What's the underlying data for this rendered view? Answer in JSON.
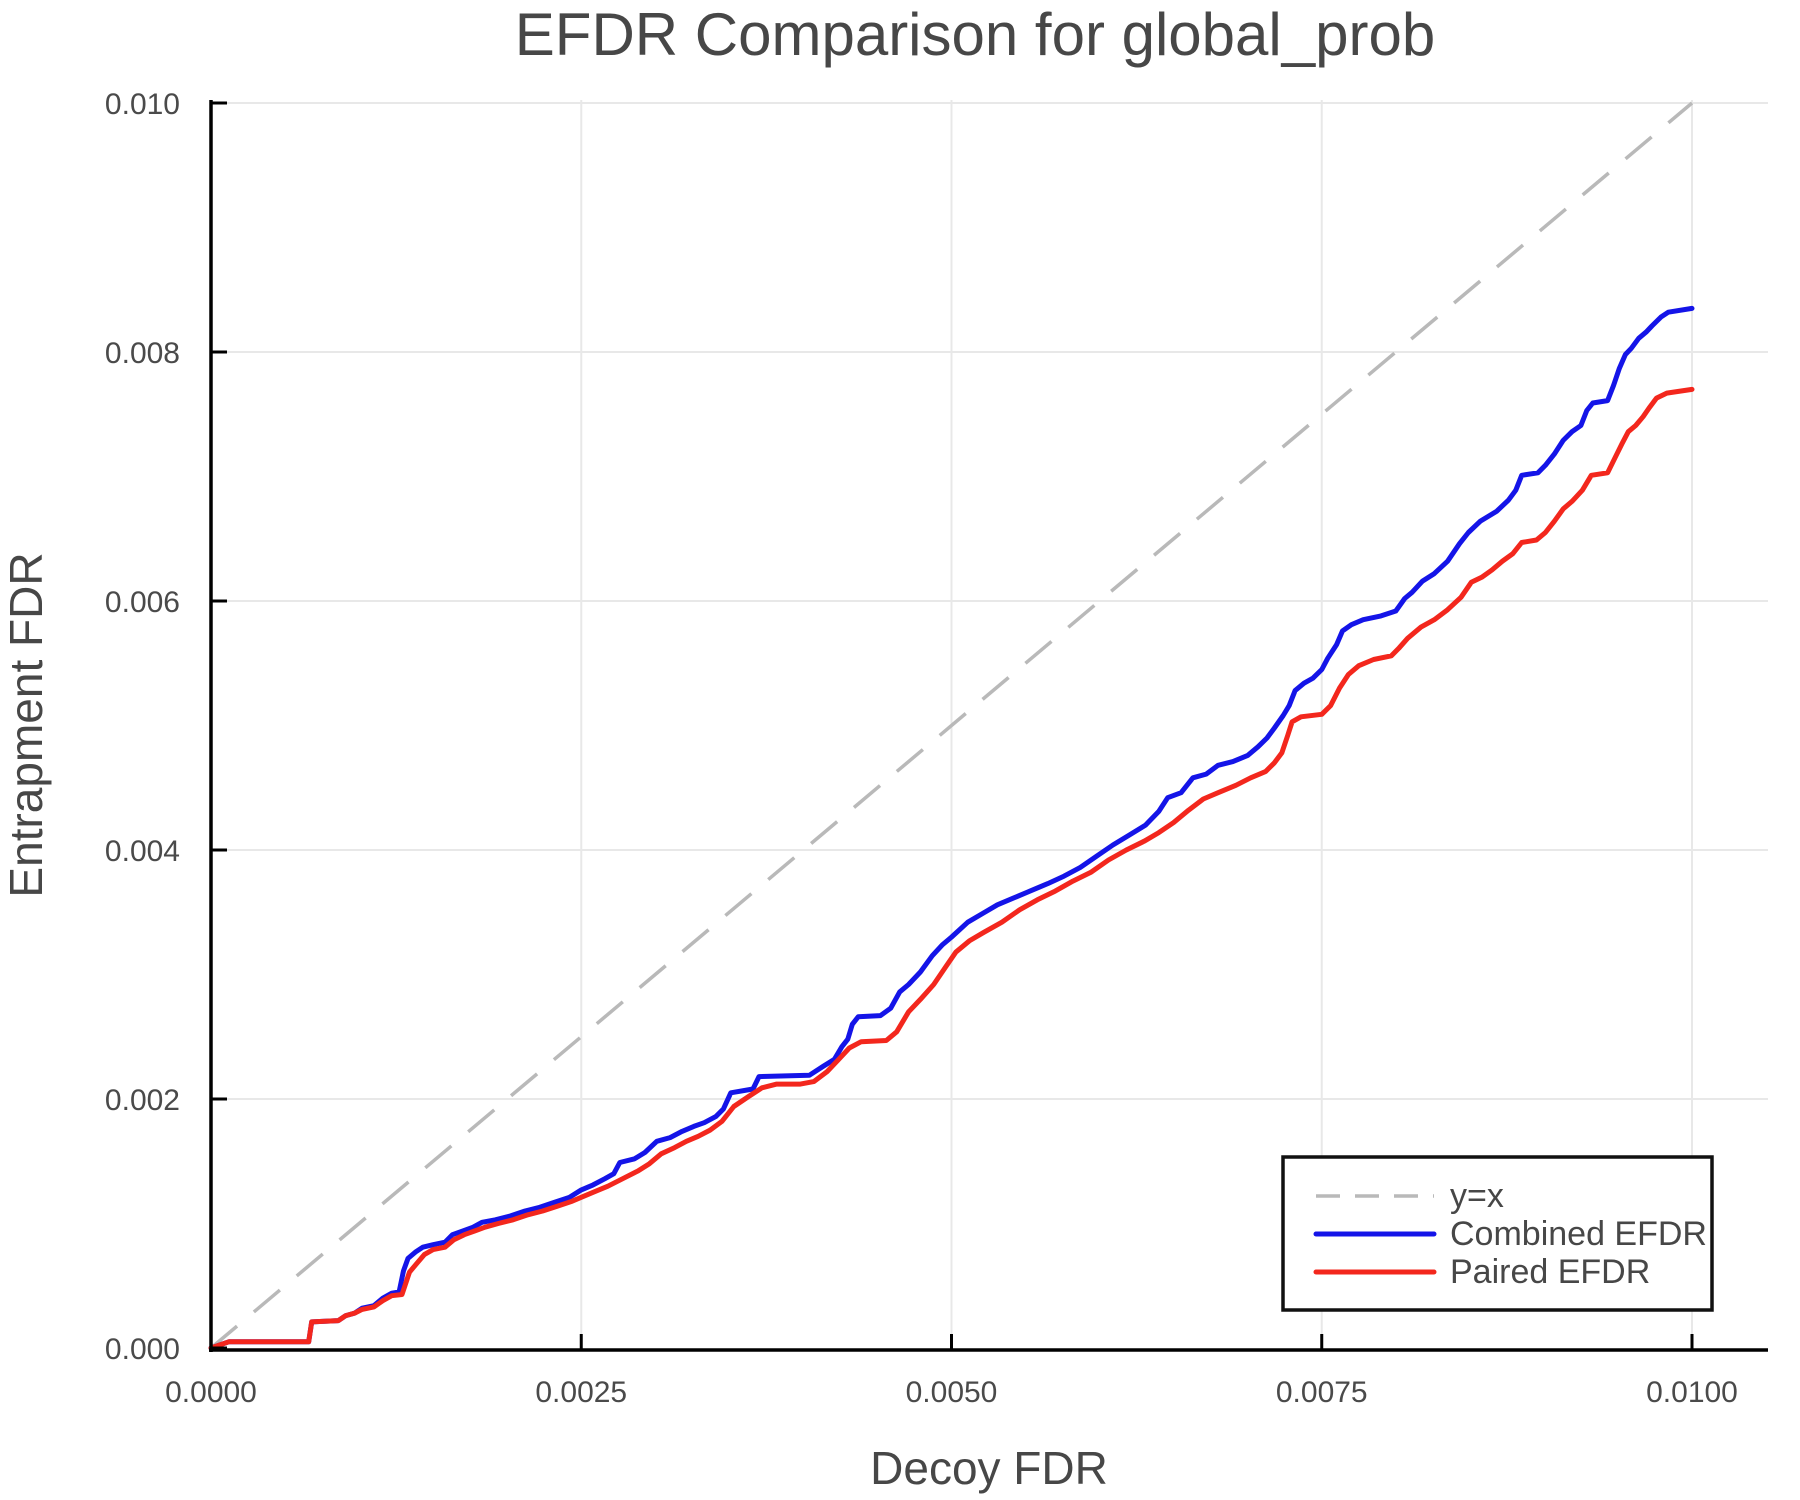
{
  "chart": {
    "title": "EFDR Comparison for global_prob",
    "xlabel": "Decoy FDR",
    "ylabel": "Entrapment FDR"
  },
  "colors": {
    "background": "#ffffff",
    "gridline": "#e8e8e8",
    "axis_spine": "#000000",
    "text": "#474747",
    "diagonal": "#b9b9b9",
    "combined_blue": "#1414e8",
    "paired_red": "#f3271d",
    "legend_border": "#111111"
  },
  "legend": {
    "items": [
      {
        "label": "y=x",
        "color": "#b9b9b9",
        "style": "dashed"
      },
      {
        "label": "Combined EFDR",
        "color": "#1414e8",
        "style": "solid"
      },
      {
        "label": "Paired EFDR",
        "color": "#f3271d",
        "style": "solid"
      }
    ]
  },
  "chart_data": {
    "type": "line",
    "title": "EFDR Comparison for global_prob",
    "xlabel": "Decoy FDR",
    "ylabel": "Entrapment FDR",
    "xlim": [
      0,
      0.0105
    ],
    "ylim": [
      0,
      0.01005
    ],
    "grid": true,
    "legend_position": "bottom-right",
    "x_ticks": [
      {
        "value": 0.0,
        "label": "0.0000"
      },
      {
        "value": 0.0025,
        "label": "0.0025"
      },
      {
        "value": 0.005,
        "label": "0.0050"
      },
      {
        "value": 0.0075,
        "label": "0.0075"
      },
      {
        "value": 0.01,
        "label": "0.0100"
      }
    ],
    "y_ticks": [
      {
        "value": 0.0,
        "label": "0.000"
      },
      {
        "value": 0.002,
        "label": "0.002"
      },
      {
        "value": 0.004,
        "label": "0.004"
      },
      {
        "value": 0.006,
        "label": "0.006"
      },
      {
        "value": 0.008,
        "label": "0.008"
      },
      {
        "value": 0.01,
        "label": "0.010"
      }
    ],
    "reference_line": {
      "name": "y=x",
      "from": [
        0,
        0
      ],
      "to": [
        0.01,
        0.01
      ],
      "color": "#b9b9b9",
      "dashed": true
    },
    "series": [
      {
        "name": "Combined EFDR",
        "color": "#1414e8",
        "points": [
          [
            0.0,
            0.0
          ],
          [
            0.00012,
            5e-05
          ],
          [
            0.00066,
            5e-05
          ],
          [
            0.00068,
            0.00021
          ],
          [
            0.00086,
            0.00022
          ],
          [
            0.00091,
            0.00026
          ],
          [
            0.00097,
            0.00028
          ],
          [
            0.00102,
            0.00032
          ],
          [
            0.0011,
            0.00034
          ],
          [
            0.00116,
            0.0004
          ],
          [
            0.00122,
            0.00044
          ],
          [
            0.00127,
            0.00045
          ],
          [
            0.0013,
            0.00062
          ],
          [
            0.00133,
            0.00072
          ],
          [
            0.00138,
            0.00077
          ],
          [
            0.00143,
            0.00081
          ],
          [
            0.0015,
            0.00083
          ],
          [
            0.00158,
            0.00085
          ],
          [
            0.00163,
            0.00091
          ],
          [
            0.0017,
            0.00094
          ],
          [
            0.00177,
            0.00097
          ],
          [
            0.00183,
            0.00101
          ],
          [
            0.00192,
            0.00103
          ],
          [
            0.00202,
            0.00106
          ],
          [
            0.00212,
            0.0011
          ],
          [
            0.00222,
            0.00113
          ],
          [
            0.00232,
            0.00117
          ],
          [
            0.00242,
            0.00121
          ],
          [
            0.0025,
            0.00127
          ],
          [
            0.00258,
            0.00131
          ],
          [
            0.00266,
            0.00136
          ],
          [
            0.00272,
            0.0014
          ],
          [
            0.00276,
            0.00149
          ],
          [
            0.00286,
            0.00152
          ],
          [
            0.00293,
            0.00157
          ],
          [
            0.00301,
            0.00166
          ],
          [
            0.0031,
            0.00169
          ],
          [
            0.00318,
            0.00174
          ],
          [
            0.00326,
            0.00178
          ],
          [
            0.00333,
            0.00181
          ],
          [
            0.00341,
            0.00186
          ],
          [
            0.00346,
            0.00192
          ],
          [
            0.00351,
            0.00205
          ],
          [
            0.00366,
            0.00208
          ],
          [
            0.0037,
            0.00218
          ],
          [
            0.00404,
            0.00219
          ],
          [
            0.00413,
            0.00226
          ],
          [
            0.00421,
            0.00232
          ],
          [
            0.00426,
            0.00242
          ],
          [
            0.0043,
            0.00248
          ],
          [
            0.00433,
            0.0026
          ],
          [
            0.00437,
            0.00266
          ],
          [
            0.00452,
            0.00267
          ],
          [
            0.00459,
            0.00273
          ],
          [
            0.00465,
            0.00286
          ],
          [
            0.00471,
            0.00292
          ],
          [
            0.00479,
            0.00302
          ],
          [
            0.00487,
            0.00315
          ],
          [
            0.00494,
            0.00324
          ],
          [
            0.005,
            0.0033
          ],
          [
            0.00511,
            0.00342
          ],
          [
            0.00521,
            0.00349
          ],
          [
            0.00531,
            0.00356
          ],
          [
            0.00541,
            0.00361
          ],
          [
            0.00553,
            0.00367
          ],
          [
            0.00565,
            0.00373
          ],
          [
            0.00576,
            0.00379
          ],
          [
            0.00587,
            0.00386
          ],
          [
            0.00598,
            0.00395
          ],
          [
            0.00609,
            0.00404
          ],
          [
            0.0062,
            0.00412
          ],
          [
            0.00631,
            0.0042
          ],
          [
            0.0064,
            0.00431
          ],
          [
            0.00646,
            0.00442
          ],
          [
            0.00655,
            0.00446
          ],
          [
            0.00663,
            0.00458
          ],
          [
            0.00672,
            0.00461
          ],
          [
            0.0068,
            0.00468
          ],
          [
            0.0069,
            0.00471
          ],
          [
            0.007,
            0.00476
          ],
          [
            0.00707,
            0.00483
          ],
          [
            0.00713,
            0.0049
          ],
          [
            0.00718,
            0.00498
          ],
          [
            0.00724,
            0.00508
          ],
          [
            0.00728,
            0.00516
          ],
          [
            0.00732,
            0.00528
          ],
          [
            0.00738,
            0.00534
          ],
          [
            0.00744,
            0.00538
          ],
          [
            0.0075,
            0.00545
          ],
          [
            0.00754,
            0.00554
          ],
          [
            0.0076,
            0.00565
          ],
          [
            0.00764,
            0.00576
          ],
          [
            0.0077,
            0.00581
          ],
          [
            0.00778,
            0.00585
          ],
          [
            0.0079,
            0.00588
          ],
          [
            0.008,
            0.00592
          ],
          [
            0.00806,
            0.00602
          ],
          [
            0.00811,
            0.00607
          ],
          [
            0.00818,
            0.00616
          ],
          [
            0.00826,
            0.00622
          ],
          [
            0.00835,
            0.00632
          ],
          [
            0.00843,
            0.00646
          ],
          [
            0.00849,
            0.00655
          ],
          [
            0.00857,
            0.00664
          ],
          [
            0.00868,
            0.00672
          ],
          [
            0.00876,
            0.00681
          ],
          [
            0.00881,
            0.00689
          ],
          [
            0.00885,
            0.00701
          ],
          [
            0.00896,
            0.00703
          ],
          [
            0.00901,
            0.00709
          ],
          [
            0.00907,
            0.00718
          ],
          [
            0.00913,
            0.00729
          ],
          [
            0.00919,
            0.00736
          ],
          [
            0.00925,
            0.00741
          ],
          [
            0.00929,
            0.00753
          ],
          [
            0.00933,
            0.00759
          ],
          [
            0.00943,
            0.00761
          ],
          [
            0.00947,
            0.00773
          ],
          [
            0.00951,
            0.00787
          ],
          [
            0.00955,
            0.00798
          ],
          [
            0.00959,
            0.00803
          ],
          [
            0.00964,
            0.00811
          ],
          [
            0.00969,
            0.00816
          ],
          [
            0.00973,
            0.00821
          ],
          [
            0.00979,
            0.00828
          ],
          [
            0.00984,
            0.00832
          ],
          [
            0.01,
            0.00835
          ]
        ]
      },
      {
        "name": "Paired EFDR",
        "color": "#f3271d",
        "points": [
          [
            0.0,
            0.0
          ],
          [
            0.00012,
            5e-05
          ],
          [
            0.00066,
            5e-05
          ],
          [
            0.00068,
            0.00021
          ],
          [
            0.00086,
            0.00022
          ],
          [
            0.00091,
            0.00026
          ],
          [
            0.00097,
            0.00028
          ],
          [
            0.00102,
            0.00031
          ],
          [
            0.0011,
            0.00033
          ],
          [
            0.00116,
            0.00038
          ],
          [
            0.00122,
            0.00042
          ],
          [
            0.00129,
            0.00043
          ],
          [
            0.00134,
            0.00061
          ],
          [
            0.00139,
            0.00068
          ],
          [
            0.00144,
            0.00075
          ],
          [
            0.0015,
            0.00079
          ],
          [
            0.00158,
            0.00081
          ],
          [
            0.00164,
            0.00087
          ],
          [
            0.00171,
            0.00091
          ],
          [
            0.00178,
            0.00094
          ],
          [
            0.00185,
            0.00097
          ],
          [
            0.00194,
            0.001
          ],
          [
            0.00204,
            0.00103
          ],
          [
            0.00214,
            0.00107
          ],
          [
            0.00224,
            0.0011
          ],
          [
            0.00234,
            0.00114
          ],
          [
            0.00244,
            0.00118
          ],
          [
            0.00252,
            0.00122
          ],
          [
            0.0026,
            0.00126
          ],
          [
            0.00268,
            0.0013
          ],
          [
            0.00278,
            0.00136
          ],
          [
            0.00288,
            0.00142
          ],
          [
            0.00296,
            0.00148
          ],
          [
            0.00304,
            0.00156
          ],
          [
            0.00313,
            0.00161
          ],
          [
            0.00321,
            0.00166
          ],
          [
            0.00329,
            0.0017
          ],
          [
            0.00337,
            0.00175
          ],
          [
            0.00345,
            0.00182
          ],
          [
            0.00353,
            0.00194
          ],
          [
            0.00363,
            0.00202
          ],
          [
            0.00372,
            0.00209
          ],
          [
            0.00382,
            0.00212
          ],
          [
            0.00398,
            0.00212
          ],
          [
            0.00407,
            0.00214
          ],
          [
            0.00416,
            0.00222
          ],
          [
            0.00424,
            0.00232
          ],
          [
            0.00431,
            0.00241
          ],
          [
            0.00439,
            0.00246
          ],
          [
            0.00456,
            0.00247
          ],
          [
            0.00463,
            0.00254
          ],
          [
            0.00471,
            0.0027
          ],
          [
            0.00479,
            0.0028
          ],
          [
            0.00488,
            0.00292
          ],
          [
            0.00496,
            0.00306
          ],
          [
            0.00503,
            0.00318
          ],
          [
            0.00512,
            0.00327
          ],
          [
            0.00522,
            0.00334
          ],
          [
            0.00534,
            0.00342
          ],
          [
            0.00546,
            0.00352
          ],
          [
            0.00558,
            0.0036
          ],
          [
            0.0057,
            0.00367
          ],
          [
            0.00582,
            0.00375
          ],
          [
            0.00594,
            0.00382
          ],
          [
            0.00606,
            0.00392
          ],
          [
            0.00618,
            0.004
          ],
          [
            0.0063,
            0.00407
          ],
          [
            0.0064,
            0.00414
          ],
          [
            0.0065,
            0.00422
          ],
          [
            0.0066,
            0.00432
          ],
          [
            0.0067,
            0.00441
          ],
          [
            0.0068,
            0.00446
          ],
          [
            0.00692,
            0.00452
          ],
          [
            0.00702,
            0.00458
          ],
          [
            0.00712,
            0.00463
          ],
          [
            0.00718,
            0.0047
          ],
          [
            0.00723,
            0.00478
          ],
          [
            0.00727,
            0.00492
          ],
          [
            0.0073,
            0.00503
          ],
          [
            0.00736,
            0.00507
          ],
          [
            0.0075,
            0.00509
          ],
          [
            0.00756,
            0.00516
          ],
          [
            0.00762,
            0.0053
          ],
          [
            0.00768,
            0.00541
          ],
          [
            0.00775,
            0.00548
          ],
          [
            0.00785,
            0.00553
          ],
          [
            0.00797,
            0.00556
          ],
          [
            0.00802,
            0.00562
          ],
          [
            0.00808,
            0.0057
          ],
          [
            0.00817,
            0.00579
          ],
          [
            0.00826,
            0.00585
          ],
          [
            0.00835,
            0.00593
          ],
          [
            0.00844,
            0.00603
          ],
          [
            0.00851,
            0.00615
          ],
          [
            0.00858,
            0.00619
          ],
          [
            0.00865,
            0.00625
          ],
          [
            0.00872,
            0.00632
          ],
          [
            0.00879,
            0.00638
          ],
          [
            0.00885,
            0.00647
          ],
          [
            0.00895,
            0.00649
          ],
          [
            0.00901,
            0.00655
          ],
          [
            0.00907,
            0.00664
          ],
          [
            0.00913,
            0.00674
          ],
          [
            0.00919,
            0.0068
          ],
          [
            0.00926,
            0.00689
          ],
          [
            0.00932,
            0.00701
          ],
          [
            0.00943,
            0.00703
          ],
          [
            0.00948,
            0.00715
          ],
          [
            0.00953,
            0.00727
          ],
          [
            0.00957,
            0.00736
          ],
          [
            0.00962,
            0.00741
          ],
          [
            0.00967,
            0.00748
          ],
          [
            0.00971,
            0.00755
          ],
          [
            0.00976,
            0.00763
          ],
          [
            0.00983,
            0.00767
          ],
          [
            0.01,
            0.0077
          ]
        ]
      }
    ]
  }
}
